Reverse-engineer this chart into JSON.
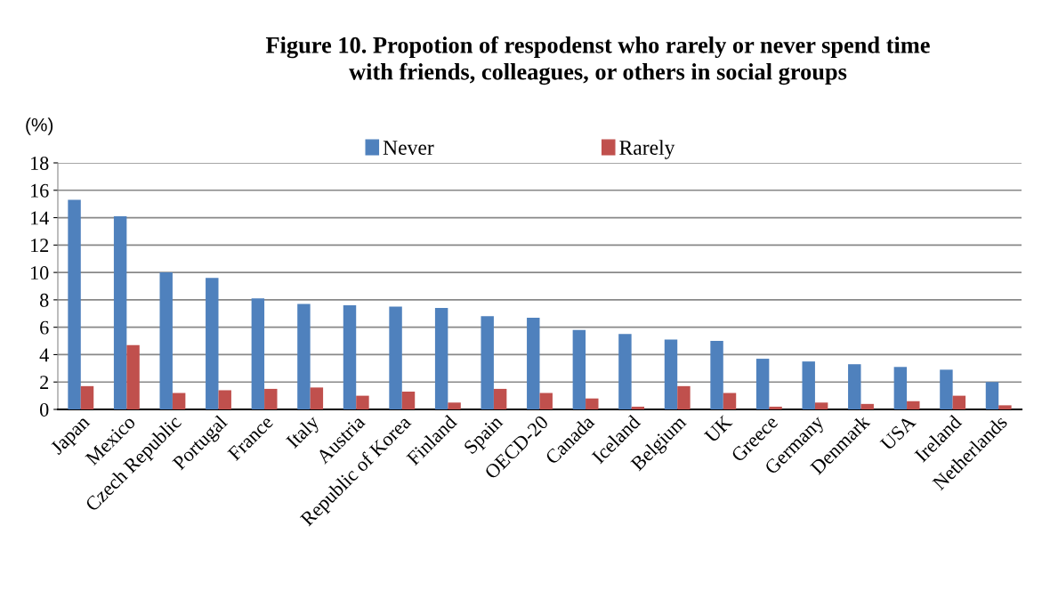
{
  "chart_data": {
    "type": "bar",
    "title": "Figure 10. Propotion of respodenst who rarely or never spend time\nwith friends, colleagues, or others in social groups",
    "ylabel": "(%)",
    "categories": [
      "Japan",
      "Mexico",
      "Czech Republic",
      "Portugal",
      "France",
      "Italy",
      "Austria",
      "Republic of Korea",
      "Finland",
      "Spain",
      "OECD-20",
      "Canada",
      "Iceland",
      "Belgium",
      "UK",
      "Greece",
      "Germany",
      "Denmark",
      "USA",
      "Ireland",
      "Netherlands"
    ],
    "series": [
      {
        "name": "Never",
        "color": "#4f81bd",
        "values": [
          15.3,
          14.1,
          10.0,
          9.6,
          8.1,
          7.7,
          7.6,
          7.5,
          7.4,
          6.8,
          6.7,
          5.8,
          5.5,
          5.1,
          5.0,
          3.7,
          3.5,
          3.3,
          3.1,
          2.9,
          2.0
        ]
      },
      {
        "name": "Rarely",
        "color": "#c0504d",
        "values": [
          1.7,
          4.7,
          1.2,
          1.4,
          1.5,
          1.6,
          1.0,
          1.3,
          0.5,
          1.5,
          1.2,
          0.8,
          0.2,
          1.7,
          1.2,
          0.2,
          0.5,
          0.4,
          0.6,
          1.0,
          0.3
        ]
      }
    ],
    "ylim": [
      0,
      18
    ],
    "yticks": [
      0,
      2,
      4,
      6,
      8,
      10,
      12,
      14,
      16,
      18
    ],
    "grid": "y",
    "legend": "top"
  }
}
